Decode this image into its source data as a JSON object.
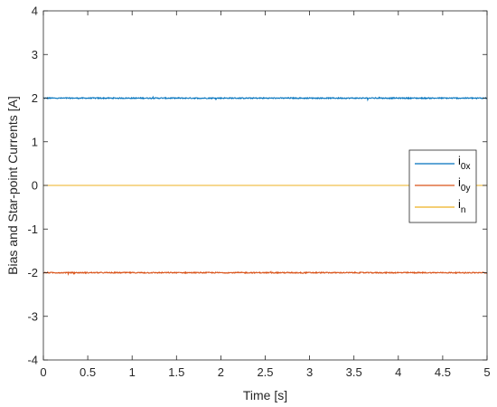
{
  "chart_data": {
    "type": "line",
    "title": "",
    "xlabel": "Time [s]",
    "ylabel": "Bias and Star-point Currents [A]",
    "xlim": [
      0,
      5
    ],
    "ylim": [
      -4,
      4
    ],
    "xticks": [
      0,
      0.5,
      1,
      1.5,
      2,
      2.5,
      3,
      3.5,
      4,
      4.5,
      5
    ],
    "xtick_labels": [
      "0",
      "0.5",
      "1",
      "1.5",
      "2",
      "2.5",
      "3",
      "3.5",
      "4",
      "4.5",
      "5"
    ],
    "yticks": [
      -4,
      -3,
      -2,
      -1,
      0,
      1,
      2,
      3,
      4
    ],
    "ytick_labels": [
      "-4",
      "-3",
      "-2",
      "-1",
      "0",
      "1",
      "2",
      "3",
      "4"
    ],
    "grid": false,
    "legend_position": "right",
    "series": [
      {
        "name": "i",
        "subscript": "0x",
        "color": "#0072BD",
        "level": 2,
        "noise": 0.012,
        "x": [
          0,
          5
        ],
        "y": [
          2,
          2
        ]
      },
      {
        "name": "i",
        "subscript": "0y",
        "color": "#D95319",
        "level": -2,
        "noise": 0.012,
        "x": [
          0,
          5
        ],
        "y": [
          -2,
          -2
        ]
      },
      {
        "name": "i",
        "subscript": "n",
        "color": "#EDB120",
        "level": 0,
        "noise": 0.0,
        "x": [
          0,
          5
        ],
        "y": [
          0,
          0
        ]
      }
    ]
  }
}
